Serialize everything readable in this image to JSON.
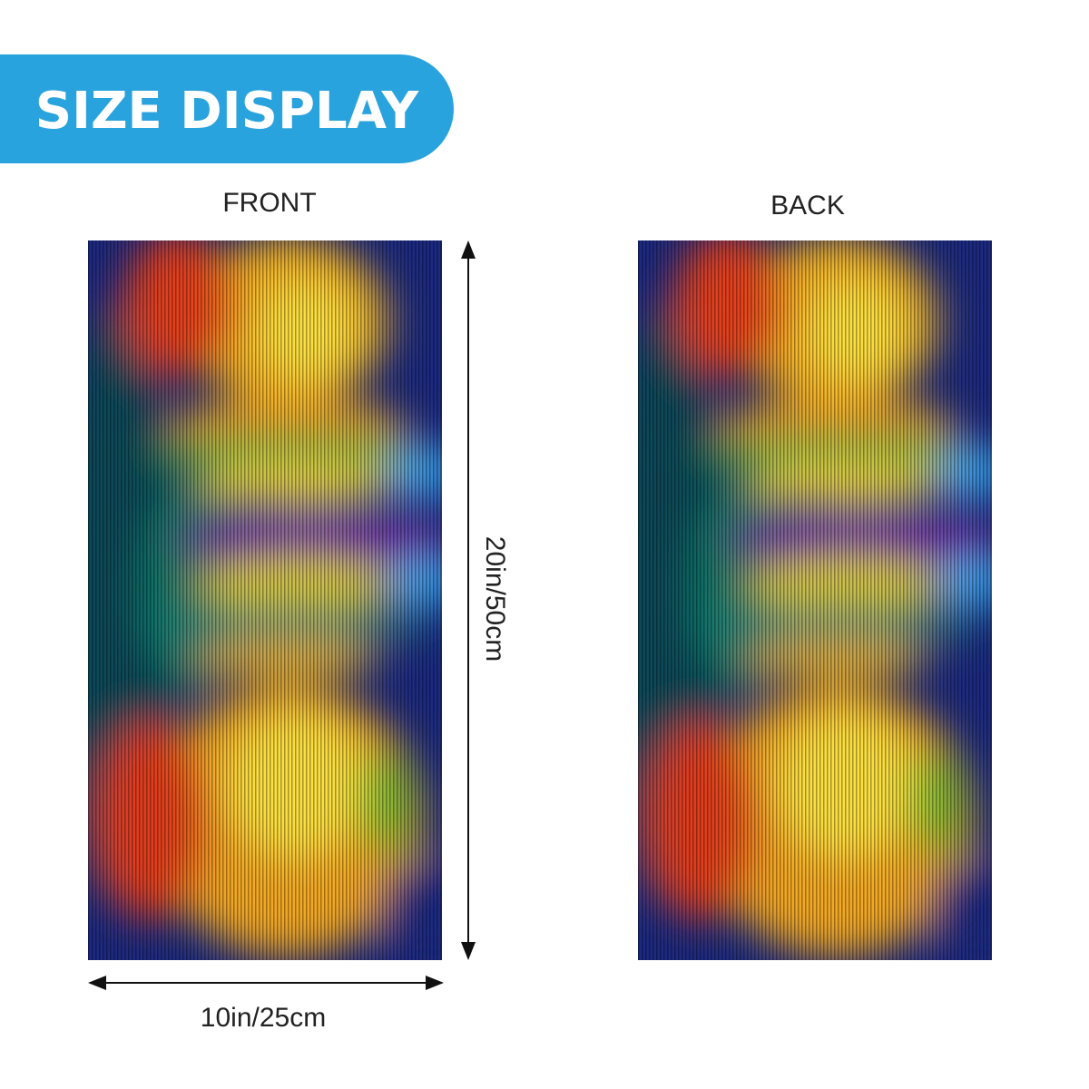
{
  "header": {
    "title": "SIZE DISPLAY"
  },
  "views": [
    {
      "label": "FRONT"
    },
    {
      "label": "BACK"
    }
  ],
  "dimensions": {
    "height": "20in/50cm",
    "width": "10in/25cm"
  }
}
